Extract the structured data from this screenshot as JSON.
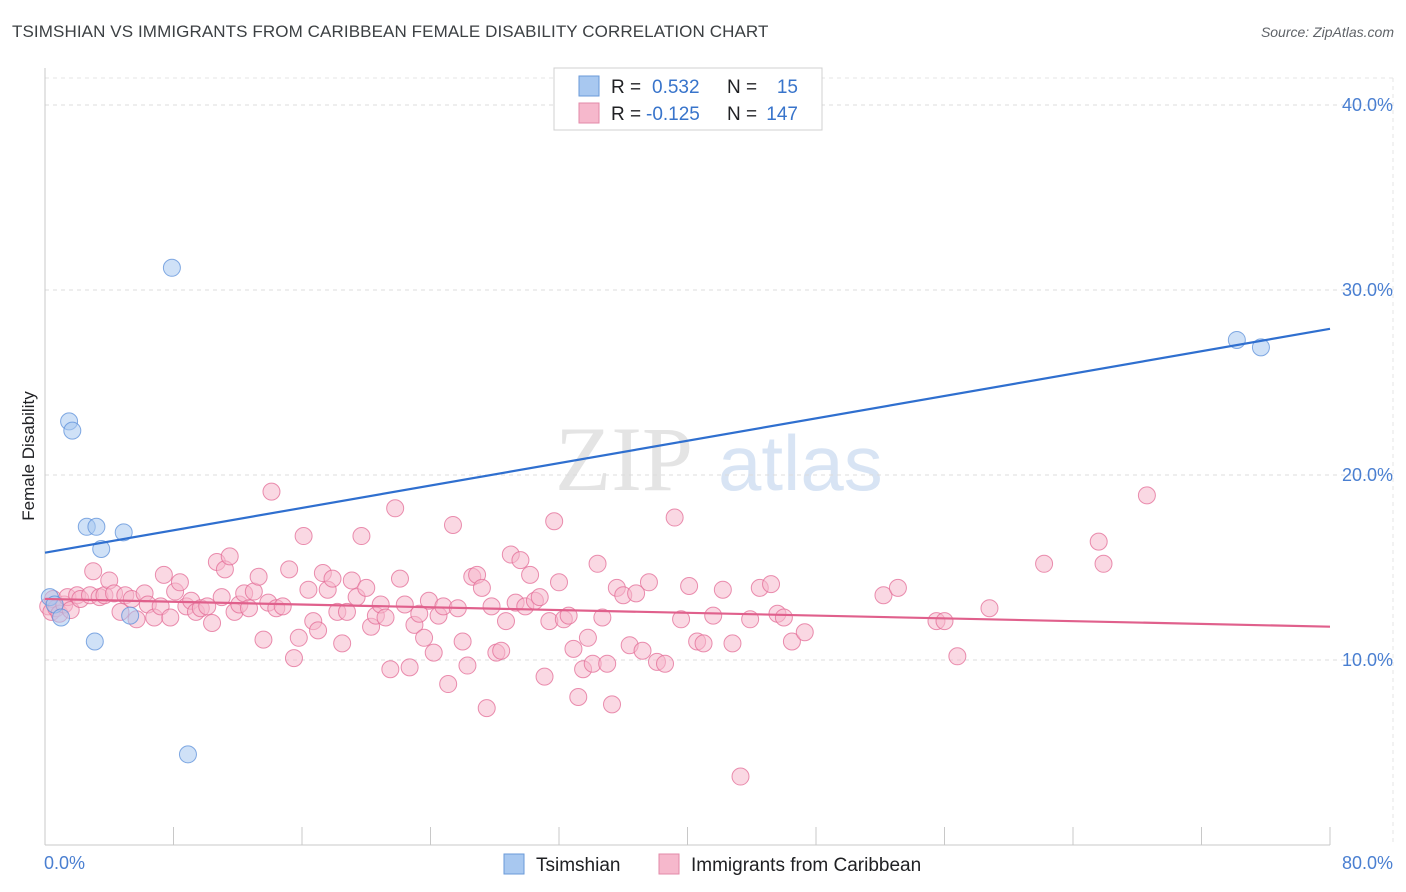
{
  "header": {
    "title": "TSIMSHIAN VS IMMIGRANTS FROM CARIBBEAN FEMALE DISABILITY CORRELATION CHART",
    "source": "Source: ZipAtlas.com"
  },
  "watermark": {
    "zip": "ZIP",
    "atlas": "atlas"
  },
  "legend": {
    "rows": [
      {
        "r_label": "R =",
        "r_value": "0.532",
        "n_label": "N =",
        "n_value": "15",
        "color": "#a8c8f0"
      },
      {
        "r_label": "R =",
        "r_value": "-0.125",
        "n_label": "N =",
        "n_value": "147",
        "color": "#f6b8cc"
      }
    ]
  },
  "chart_data": {
    "type": "scatter",
    "title": "TSIMSHIAN VS IMMIGRANTS FROM CARIBBEAN FEMALE DISABILITY CORRELATION CHART",
    "xlabel": "",
    "ylabel": "Female Disability",
    "xlim": [
      0,
      80
    ],
    "ylim": [
      0,
      42
    ],
    "x_tick_labels": [
      "0.0%",
      "80.0%"
    ],
    "y_ticks": [
      10,
      20,
      30,
      40
    ],
    "y_tick_labels": [
      "10.0%",
      "20.0%",
      "30.0%",
      "40.0%"
    ],
    "grid": true,
    "series": [
      {
        "name": "Tsimshian",
        "color": "#5b8fd9",
        "fill": "#a8c8f0",
        "trend": {
          "x": [
            0,
            80
          ],
          "y": [
            15.8,
            27.9
          ]
        },
        "points": [
          [
            0.3,
            13.4
          ],
          [
            0.6,
            13.0
          ],
          [
            1.0,
            12.3
          ],
          [
            1.5,
            22.9
          ],
          [
            1.7,
            22.4
          ],
          [
            2.6,
            17.2
          ],
          [
            3.2,
            17.2
          ],
          [
            3.1,
            11.0
          ],
          [
            3.5,
            16.0
          ],
          [
            4.9,
            16.9
          ],
          [
            5.3,
            12.4
          ],
          [
            7.9,
            31.2
          ],
          [
            8.9,
            4.9
          ],
          [
            74.2,
            27.3
          ],
          [
            75.7,
            26.9
          ]
        ]
      },
      {
        "name": "Immigrants from Caribbean",
        "color": "#e36b95",
        "fill": "#f6b8cc",
        "trend": {
          "x": [
            0,
            80
          ],
          "y": [
            13.3,
            11.8
          ]
        },
        "points": [
          [
            0.2,
            12.9
          ],
          [
            0.4,
            12.6
          ],
          [
            0.5,
            13.3
          ],
          [
            0.7,
            12.8
          ],
          [
            0.9,
            12.5
          ],
          [
            1.2,
            13.0
          ],
          [
            1.4,
            13.4
          ],
          [
            1.6,
            12.7
          ],
          [
            2.0,
            13.5
          ],
          [
            2.2,
            13.3
          ],
          [
            2.8,
            13.5
          ],
          [
            3.0,
            14.8
          ],
          [
            3.4,
            13.4
          ],
          [
            3.7,
            13.5
          ],
          [
            4.0,
            14.3
          ],
          [
            4.3,
            13.6
          ],
          [
            4.7,
            12.6
          ],
          [
            5.0,
            13.5
          ],
          [
            5.4,
            13.3
          ],
          [
            5.7,
            12.2
          ],
          [
            6.2,
            13.6
          ],
          [
            6.4,
            13.0
          ],
          [
            6.8,
            12.3
          ],
          [
            7.2,
            12.9
          ],
          [
            7.4,
            14.6
          ],
          [
            7.8,
            12.3
          ],
          [
            8.1,
            13.7
          ],
          [
            8.4,
            14.2
          ],
          [
            8.8,
            12.9
          ],
          [
            9.1,
            13.2
          ],
          [
            9.4,
            12.6
          ],
          [
            9.7,
            12.8
          ],
          [
            10.1,
            12.9
          ],
          [
            10.4,
            12.0
          ],
          [
            10.7,
            15.3
          ],
          [
            11.0,
            13.4
          ],
          [
            11.2,
            14.9
          ],
          [
            11.5,
            15.6
          ],
          [
            11.8,
            12.6
          ],
          [
            12.1,
            13.0
          ],
          [
            12.4,
            13.6
          ],
          [
            12.7,
            12.8
          ],
          [
            13.0,
            13.7
          ],
          [
            13.3,
            14.5
          ],
          [
            13.6,
            11.1
          ],
          [
            13.9,
            13.1
          ],
          [
            14.1,
            19.1
          ],
          [
            14.4,
            12.8
          ],
          [
            14.8,
            12.9
          ],
          [
            15.2,
            14.9
          ],
          [
            15.5,
            10.1
          ],
          [
            15.8,
            11.2
          ],
          [
            16.1,
            16.7
          ],
          [
            16.4,
            13.8
          ],
          [
            16.7,
            12.1
          ],
          [
            17.0,
            11.6
          ],
          [
            17.3,
            14.7
          ],
          [
            17.6,
            13.8
          ],
          [
            17.9,
            14.4
          ],
          [
            18.2,
            12.6
          ],
          [
            18.5,
            10.9
          ],
          [
            18.8,
            12.6
          ],
          [
            19.1,
            14.3
          ],
          [
            19.4,
            13.4
          ],
          [
            19.7,
            16.7
          ],
          [
            20.0,
            13.9
          ],
          [
            20.3,
            11.8
          ],
          [
            20.6,
            12.4
          ],
          [
            20.9,
            13.0
          ],
          [
            21.2,
            12.3
          ],
          [
            21.5,
            9.5
          ],
          [
            21.8,
            18.2
          ],
          [
            22.1,
            14.4
          ],
          [
            22.4,
            13.0
          ],
          [
            22.7,
            9.6
          ],
          [
            23.0,
            11.9
          ],
          [
            23.3,
            12.5
          ],
          [
            23.6,
            11.2
          ],
          [
            23.9,
            13.2
          ],
          [
            24.2,
            10.4
          ],
          [
            24.5,
            12.4
          ],
          [
            24.8,
            12.9
          ],
          [
            25.1,
            8.7
          ],
          [
            25.4,
            17.3
          ],
          [
            25.7,
            12.8
          ],
          [
            26.0,
            11.0
          ],
          [
            26.3,
            9.7
          ],
          [
            26.6,
            14.5
          ],
          [
            26.9,
            14.6
          ],
          [
            27.2,
            13.9
          ],
          [
            27.5,
            7.4
          ],
          [
            27.8,
            12.9
          ],
          [
            28.1,
            10.4
          ],
          [
            28.4,
            10.5
          ],
          [
            28.7,
            12.1
          ],
          [
            29.0,
            15.7
          ],
          [
            29.3,
            13.1
          ],
          [
            29.6,
            15.4
          ],
          [
            29.9,
            12.9
          ],
          [
            30.2,
            14.6
          ],
          [
            30.5,
            13.2
          ],
          [
            30.8,
            13.4
          ],
          [
            31.1,
            9.1
          ],
          [
            31.4,
            12.1
          ],
          [
            31.7,
            17.5
          ],
          [
            32.0,
            14.2
          ],
          [
            32.3,
            12.2
          ],
          [
            32.6,
            12.4
          ],
          [
            32.9,
            10.6
          ],
          [
            33.2,
            8.0
          ],
          [
            33.5,
            9.5
          ],
          [
            33.8,
            11.2
          ],
          [
            34.1,
            9.8
          ],
          [
            34.4,
            15.2
          ],
          [
            34.7,
            12.3
          ],
          [
            35.0,
            9.8
          ],
          [
            35.3,
            7.6
          ],
          [
            35.6,
            13.9
          ],
          [
            36.0,
            13.5
          ],
          [
            36.4,
            10.8
          ],
          [
            36.8,
            13.6
          ],
          [
            37.2,
            10.5
          ],
          [
            37.6,
            14.2
          ],
          [
            38.1,
            9.9
          ],
          [
            38.6,
            9.8
          ],
          [
            39.2,
            17.7
          ],
          [
            39.6,
            12.2
          ],
          [
            40.1,
            14.0
          ],
          [
            40.6,
            11.0
          ],
          [
            41.0,
            10.9
          ],
          [
            41.6,
            12.4
          ],
          [
            42.2,
            13.8
          ],
          [
            42.8,
            10.9
          ],
          [
            43.3,
            3.7
          ],
          [
            43.9,
            12.2
          ],
          [
            44.5,
            13.9
          ],
          [
            45.2,
            14.1
          ],
          [
            45.6,
            12.5
          ],
          [
            46.0,
            12.3
          ],
          [
            46.5,
            11.0
          ],
          [
            47.3,
            11.5
          ],
          [
            52.2,
            13.5
          ],
          [
            53.1,
            13.9
          ],
          [
            55.5,
            12.1
          ],
          [
            56.0,
            12.1
          ],
          [
            56.8,
            10.2
          ],
          [
            58.8,
            12.8
          ],
          [
            62.2,
            15.2
          ],
          [
            65.6,
            16.4
          ],
          [
            65.9,
            15.2
          ],
          [
            68.6,
            18.9
          ]
        ]
      }
    ]
  },
  "bottom_legend": {
    "items": [
      {
        "label": "Tsimshian",
        "color": "#a8c8f0"
      },
      {
        "label": "Immigrants from Caribbean",
        "color": "#f6b8cc"
      }
    ]
  }
}
